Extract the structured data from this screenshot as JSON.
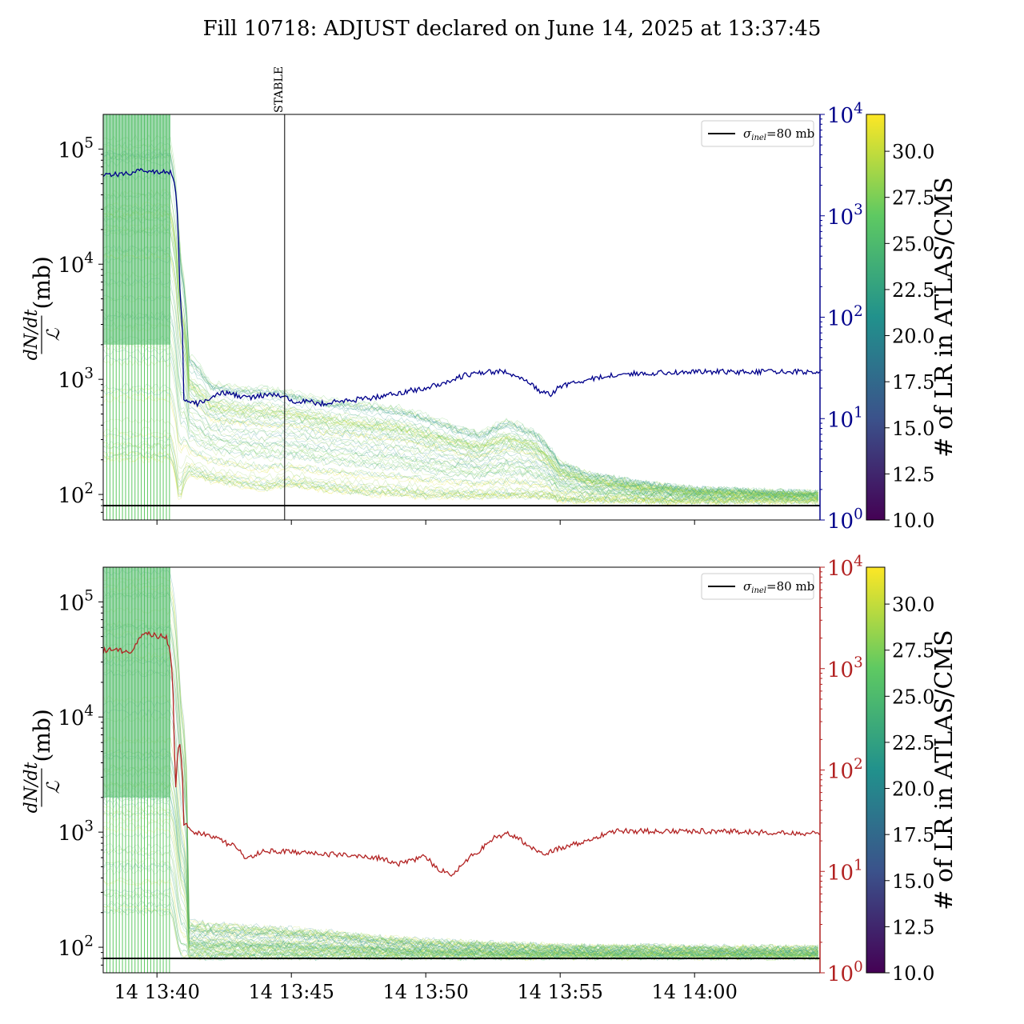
{
  "title": "Fill 10718: ADJUST declared on June 14, 2025 at 13:37:45",
  "colors": {
    "blue_series": "#00008b",
    "red_series": "#b22222",
    "reference_line": "#000000",
    "colormap": [
      "#440154",
      "#3b528b",
      "#21918c",
      "#5ec962",
      "#fde725"
    ]
  },
  "chart_data": [
    {
      "type": "line",
      "panel": "top",
      "ylabel_fraction_num": "dN/dt",
      "ylabel_fraction_den": "ℒ",
      "ylabel_unit": "(mb)",
      "yscale": "log",
      "ylim": [
        60,
        200000
      ],
      "y_ticks": [
        100,
        1000,
        10000,
        100000
      ],
      "y_tick_labels": [
        [
          "10",
          "2"
        ],
        [
          "10",
          "3"
        ],
        [
          "10",
          "4"
        ],
        [
          "10",
          "5"
        ]
      ],
      "xlim": [
        "13:38:00",
        "14:04:40"
      ],
      "x_ticks": [
        "13:40:00",
        "13:45:00",
        "13:50:00",
        "13:55:00",
        "14:00:00"
      ],
      "x_tick_labels": [],
      "right_axis": {
        "yscale": "log",
        "ylim": [
          1,
          10000
        ],
        "color": "#00008b",
        "ticks": [
          1,
          10,
          100,
          1000,
          10000
        ],
        "tick_labels": [
          [
            "10",
            "0"
          ],
          [
            "10",
            "1"
          ],
          [
            "10",
            "2"
          ],
          [
            "10",
            "3"
          ],
          [
            "10",
            "4"
          ]
        ]
      },
      "vertical_marker": {
        "label": "STABLE",
        "x": "13:44:45"
      },
      "reference_line": {
        "label_sigma": "σ",
        "label_sub": "inel",
        "label_rest": "=80 mb",
        "y": 80
      },
      "legend": "top-right",
      "band_description": "many thin colored lines, one per luminosity region",
      "right_series": {
        "x": [
          "13:38:00",
          "13:38:30",
          "13:39:00",
          "13:39:30",
          "13:40:00",
          "13:40:30",
          "13:40:40",
          "13:40:50",
          "13:41:00",
          "13:41:30",
          "13:42:00",
          "13:42:30",
          "13:43:00",
          "13:43:30",
          "13:44:00",
          "13:44:30",
          "13:45:00",
          "13:45:30",
          "13:46:00",
          "13:47:00",
          "13:48:00",
          "13:49:00",
          "13:50:00",
          "13:51:00",
          "13:51:30",
          "13:52:00",
          "13:52:30",
          "13:53:00",
          "13:53:30",
          "13:54:00",
          "13:54:20",
          "13:54:40",
          "13:55:00",
          "13:56:00",
          "13:57:00",
          "13:58:00",
          "14:00:00",
          "14:02:00",
          "14:04:40"
        ],
        "y": [
          2600,
          2550,
          2650,
          2800,
          2750,
          2700,
          2000,
          200,
          15,
          14,
          16,
          18,
          17,
          16,
          17,
          17,
          15,
          15,
          14,
          15,
          16,
          18,
          20,
          24,
          27,
          28,
          29,
          29,
          25,
          21,
          18,
          17,
          21,
          24,
          27,
          28,
          29,
          29,
          29
        ]
      },
      "band_envelope": {
        "x": [
          "13:38:00",
          "13:40:30",
          "13:40:50",
          "13:41:10",
          "13:42:00",
          "13:43:00",
          "13:44:00",
          "13:45:00",
          "13:46:00",
          "13:47:00",
          "13:48:00",
          "13:49:00",
          "13:50:00",
          "13:51:00",
          "13:52:00",
          "13:53:00",
          "13:54:00",
          "13:54:30",
          "13:55:00",
          "13:56:00",
          "13:58:00",
          "14:00:00",
          "14:02:00",
          "14:04:40"
        ],
        "upper": [
          200000,
          200000,
          20000,
          2000,
          1100,
          1000,
          1000,
          900,
          800,
          750,
          700,
          650,
          550,
          450,
          380,
          500,
          400,
          300,
          200,
          160,
          130,
          115,
          110,
          105
        ],
        "lower": [
          200,
          200,
          80,
          150,
          130,
          120,
          110,
          120,
          110,
          105,
          100,
          100,
          95,
          95,
          95,
          95,
          95,
          95,
          88,
          88,
          87,
          87,
          87,
          87
        ]
      }
    },
    {
      "type": "line",
      "panel": "bottom",
      "ylabel_fraction_num": "dN/dt",
      "ylabel_fraction_den": "ℒ",
      "ylabel_unit": "(mb)",
      "yscale": "log",
      "ylim": [
        60,
        200000
      ],
      "y_ticks": [
        100,
        1000,
        10000,
        100000
      ],
      "y_tick_labels": [
        [
          "10",
          "2"
        ],
        [
          "10",
          "3"
        ],
        [
          "10",
          "4"
        ],
        [
          "10",
          "5"
        ]
      ],
      "xlim": [
        "13:38:00",
        "14:04:40"
      ],
      "x_ticks": [
        "13:40:00",
        "13:45:00",
        "13:50:00",
        "13:55:00",
        "14:00:00"
      ],
      "x_tick_labels": [
        "14 13:40",
        "14 13:45",
        "14 13:50",
        "14 13:55",
        "14 14:00"
      ],
      "right_axis": {
        "yscale": "log",
        "ylim": [
          1,
          10000
        ],
        "color": "#b22222",
        "ticks": [
          1,
          10,
          100,
          1000,
          10000
        ],
        "tick_labels": [
          [
            "10",
            "0"
          ],
          [
            "10",
            "1"
          ],
          [
            "10",
            "2"
          ],
          [
            "10",
            "3"
          ],
          [
            "10",
            "4"
          ]
        ]
      },
      "reference_line": {
        "label_sigma": "σ",
        "label_sub": "inel",
        "label_rest": "=80 mb",
        "y": 80
      },
      "legend": "top-right",
      "band_description": "many thin colored lines, one per luminosity region",
      "right_series": {
        "x": [
          "13:38:00",
          "13:38:30",
          "13:39:00",
          "13:39:20",
          "13:39:40",
          "13:40:00",
          "13:40:20",
          "13:40:30",
          "13:40:40",
          "13:40:50",
          "13:41:00",
          "13:41:20",
          "13:42:00",
          "13:43:00",
          "13:43:20",
          "13:44:00",
          "13:46:00",
          "13:48:00",
          "13:49:00",
          "13:50:00",
          "13:50:20",
          "13:51:00",
          "13:51:30",
          "13:52:00",
          "13:52:30",
          "13:53:00",
          "13:54:00",
          "13:54:30",
          "13:55:00",
          "13:56:00",
          "13:57:00",
          "13:59:00",
          "14:01:00",
          "14:03:00",
          "14:04:40"
        ],
        "y": [
          1500,
          1550,
          1400,
          2000,
          2200,
          2100,
          2100,
          1400,
          30,
          200,
          30,
          25,
          22,
          17,
          13,
          16,
          15,
          14,
          12,
          14,
          11,
          9,
          13,
          16,
          21,
          24,
          17,
          15,
          17,
          20,
          25,
          25,
          25,
          24,
          24
        ]
      },
      "band_envelope": {
        "x": [
          "13:38:00",
          "13:40:30",
          "13:40:50",
          "13:41:10",
          "13:42:00",
          "13:44:00",
          "13:46:00",
          "13:48:00",
          "13:50:00",
          "13:52:00",
          "13:54:00",
          "13:56:00",
          "13:58:00",
          "14:00:00",
          "14:02:00",
          "14:04:40"
        ],
        "upper": [
          200000,
          200000,
          20000,
          170,
          160,
          150,
          140,
          125,
          115,
          110,
          105,
          102,
          102,
          101,
          100,
          100
        ],
        "lower": [
          200,
          200,
          82,
          82,
          82,
          82,
          82,
          82,
          82,
          82,
          82,
          82,
          82,
          82,
          82,
          82
        ]
      }
    }
  ],
  "colorbars": [
    {
      "panel": "top",
      "label": "# of LR in ATLAS/CMS",
      "range": [
        10,
        32
      ],
      "ticks": [
        "10.0",
        "12.5",
        "15.0",
        "17.5",
        "20.0",
        "22.5",
        "25.0",
        "27.5",
        "30.0"
      ]
    },
    {
      "panel": "bottom",
      "label": "# of LR in ATLAS/CMS",
      "range": [
        10,
        32
      ],
      "ticks": [
        "10.0",
        "12.5",
        "15.0",
        "17.5",
        "20.0",
        "22.5",
        "25.0",
        "27.5",
        "30.0"
      ]
    }
  ]
}
